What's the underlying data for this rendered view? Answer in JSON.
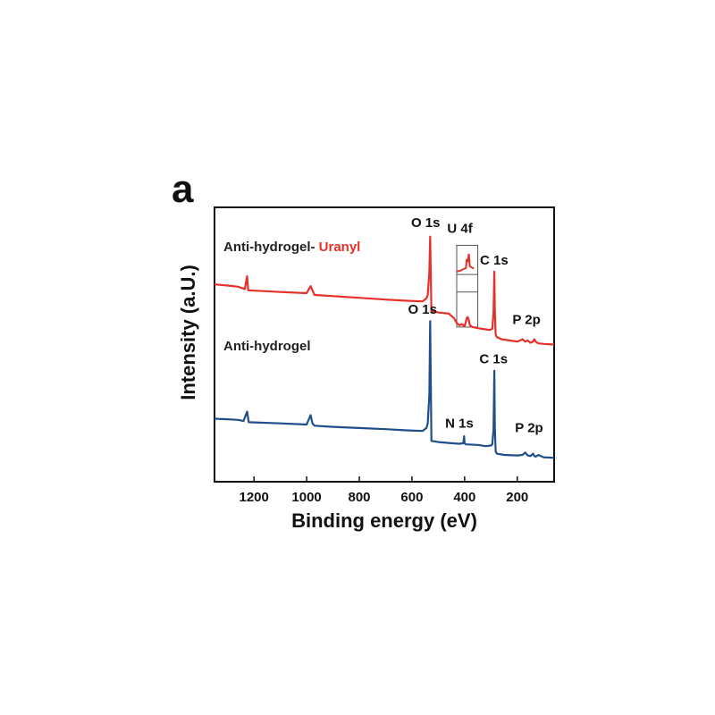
{
  "panel_label": "a",
  "chart_data": {
    "type": "line",
    "title": "",
    "xlabel": "Binding energy (eV)",
    "ylabel": "Intensity (a.U.)",
    "xlim": [
      1350,
      60
    ],
    "x_reversed": true,
    "x_ticks": [
      1200,
      1000,
      800,
      600,
      400,
      200
    ],
    "x_tick_labels": [
      "1200",
      "1000",
      "800",
      "600",
      "400",
      "200"
    ],
    "y_ticks_shown": false,
    "series": [
      {
        "name": "Anti-hydrogel- Uranyl",
        "label_parts": [
          "Anti-hydrogel- ",
          "Uranyl"
        ],
        "color": "#e8302a",
        "x": [
          1350,
          1300,
          1260,
          1235,
          1226,
          1222,
          1100,
          1000,
          985,
          978,
          970,
          900,
          800,
          700,
          620,
          560,
          545,
          540,
          534,
          531,
          526,
          500,
          480,
          460,
          440,
          430,
          420,
          410,
          400,
          392,
          388,
          383,
          380,
          370,
          350,
          320,
          305,
          295,
          290,
          287,
          285,
          282,
          278,
          260,
          230,
          200,
          180,
          170,
          160,
          150,
          140,
          135,
          130,
          120,
          100,
          60
        ],
        "y": [
          3.08,
          3.06,
          3.04,
          3.0,
          3.22,
          2.98,
          2.95,
          2.93,
          3.05,
          2.98,
          2.9,
          2.88,
          2.85,
          2.82,
          2.8,
          2.79,
          2.84,
          2.9,
          3.3,
          3.9,
          2.62,
          2.6,
          2.59,
          2.58,
          2.5,
          2.42,
          2.38,
          2.4,
          2.36,
          2.5,
          2.52,
          2.45,
          2.38,
          2.35,
          2.33,
          2.31,
          2.3,
          2.32,
          2.6,
          3.3,
          2.6,
          2.22,
          2.18,
          2.14,
          2.12,
          2.1,
          2.14,
          2.1,
          2.12,
          2.08,
          2.1,
          2.14,
          2.1,
          2.07,
          2.06,
          2.05
        ]
      },
      {
        "name": "Anti-hydrogel",
        "label_parts": [
          "Anti-hydrogel"
        ],
        "color": "#1f4e8c",
        "x": [
          1350,
          1300,
          1260,
          1240,
          1226,
          1220,
          1100,
          1000,
          985,
          978,
          970,
          900,
          800,
          700,
          620,
          560,
          545,
          540,
          534,
          531,
          526,
          500,
          450,
          420,
          405,
          402,
          400,
          395,
          350,
          320,
          300,
          295,
          290,
          287,
          285,
          282,
          278,
          250,
          200,
          180,
          170,
          160,
          150,
          140,
          135,
          130,
          120,
          100,
          60
        ],
        "y": [
          0.78,
          0.77,
          0.76,
          0.74,
          0.9,
          0.72,
          0.7,
          0.68,
          0.84,
          0.7,
          0.66,
          0.64,
          0.62,
          0.6,
          0.58,
          0.57,
          0.62,
          0.7,
          1.2,
          2.45,
          0.4,
          0.38,
          0.36,
          0.35,
          0.36,
          0.48,
          0.36,
          0.34,
          0.33,
          0.31,
          0.32,
          0.34,
          0.6,
          1.6,
          0.6,
          0.22,
          0.18,
          0.16,
          0.15,
          0.16,
          0.2,
          0.15,
          0.14,
          0.18,
          0.14,
          0.13,
          0.16,
          0.12,
          0.11
        ]
      }
    ],
    "peak_labels": [
      {
        "text": "O 1s",
        "x": 548,
        "y": 4.06,
        "series": "Anti-hydrogel- Uranyl"
      },
      {
        "text": "U 4f",
        "x": 418,
        "y": 3.96,
        "series": "Anti-hydrogel- Uranyl"
      },
      {
        "text": "C 1s",
        "x": 288,
        "y": 3.42,
        "series": "Anti-hydrogel- Uranyl"
      },
      {
        "text": "P 2p",
        "x": 165,
        "y": 2.4,
        "series": "Anti-hydrogel- Uranyl"
      },
      {
        "text": "O 1s",
        "x": 560,
        "y": 2.58,
        "series": "Anti-hydrogel"
      },
      {
        "text": "N 1s",
        "x": 420,
        "y": 0.63,
        "series": "Anti-hydrogel"
      },
      {
        "text": "C 1s",
        "x": 290,
        "y": 1.73,
        "series": "Anti-hydrogel"
      },
      {
        "text": "P 2p",
        "x": 155,
        "y": 0.55,
        "series": "Anti-hydrogel"
      }
    ],
    "inset": {
      "description": "zoomed U 4f region",
      "x_range": [
        430,
        350
      ],
      "curve_x": [
        430,
        415,
        405,
        395,
        392,
        388,
        384,
        380,
        372,
        365
      ],
      "curve_y": [
        0.35,
        0.38,
        0.42,
        0.45,
        0.7,
        0.62,
        0.85,
        0.5,
        0.46,
        0.44
      ]
    },
    "ylim": [
      -0.3,
      4.4
    ]
  }
}
